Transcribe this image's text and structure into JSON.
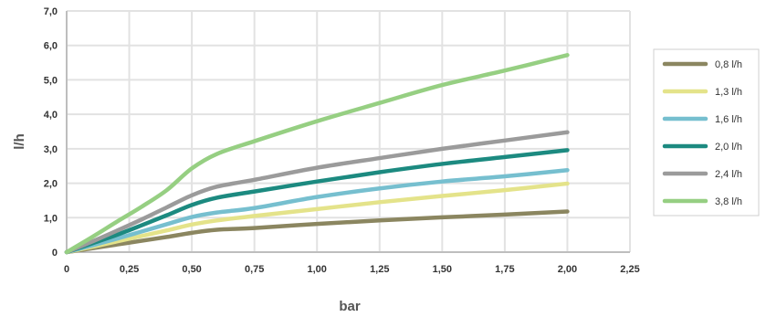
{
  "chart_data": {
    "type": "line",
    "xlabel": "bar",
    "ylabel": "l/h",
    "xlim": [
      0,
      2.25
    ],
    "ylim": [
      0,
      7
    ],
    "grid": true,
    "legend_position": "right",
    "x_ticks": [
      "0",
      "0,25",
      "0,50",
      "0,75",
      "1,00",
      "1,25",
      "1,50",
      "1,75",
      "2,00",
      "2,25"
    ],
    "y_ticks": [
      "0",
      "1,0",
      "2,0",
      "3,0",
      "4,0",
      "5,0",
      "6,0",
      "7,0"
    ],
    "x": [
      0,
      0.1,
      0.2,
      0.3,
      0.4,
      0.5,
      0.6,
      0.75,
      1.0,
      1.25,
      1.5,
      1.75,
      2.0
    ],
    "series": [
      {
        "name": "0,8 l/h",
        "color": "#8b8660",
        "values": [
          0,
          0.11,
          0.22,
          0.33,
          0.44,
          0.56,
          0.65,
          0.7,
          0.82,
          0.92,
          1.01,
          1.09,
          1.18
        ]
      },
      {
        "name": "1,3 l/h",
        "color": "#e4e38a",
        "values": [
          0,
          0.15,
          0.31,
          0.47,
          0.63,
          0.8,
          0.92,
          1.05,
          1.25,
          1.45,
          1.63,
          1.8,
          1.99
        ]
      },
      {
        "name": "1,6 l/h",
        "color": "#76bfcf",
        "values": [
          0,
          0.19,
          0.39,
          0.6,
          0.81,
          1.02,
          1.15,
          1.28,
          1.6,
          1.85,
          2.05,
          2.2,
          2.38
        ]
      },
      {
        "name": "2,0 l/h",
        "color": "#1c8a80",
        "values": [
          0,
          0.25,
          0.5,
          0.78,
          1.07,
          1.37,
          1.58,
          1.76,
          2.05,
          2.32,
          2.56,
          2.76,
          2.96
        ]
      },
      {
        "name": "2,4 l/h",
        "color": "#9b9b9b",
        "values": [
          0,
          0.3,
          0.62,
          0.95,
          1.3,
          1.65,
          1.9,
          2.1,
          2.45,
          2.73,
          3.0,
          3.24,
          3.48
        ]
      },
      {
        "name": "3,8 l/h",
        "color": "#96cf82",
        "values": [
          0,
          0.43,
          0.88,
          1.32,
          1.8,
          2.43,
          2.85,
          3.22,
          3.8,
          4.33,
          4.85,
          5.27,
          5.72
        ]
      }
    ]
  }
}
